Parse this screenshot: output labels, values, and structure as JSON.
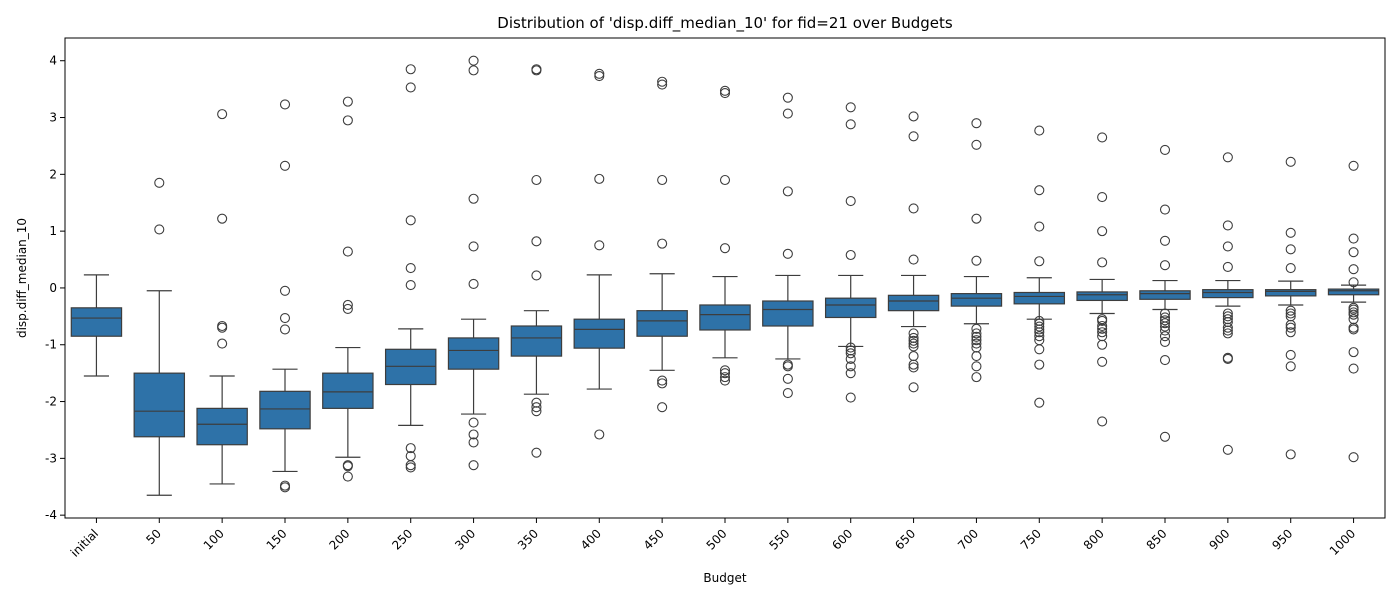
{
  "chart_data": {
    "type": "box",
    "title": "Distribution of 'disp.diff_median_10' for fid=21 over Budgets",
    "xlabel": "Budget",
    "ylabel": "disp.diff_median_10",
    "ylim": [
      -4.05,
      4.4
    ],
    "yticks": [
      -4,
      -3,
      -2,
      -1,
      0,
      1,
      2,
      3,
      4
    ],
    "grid": false,
    "legend": "none",
    "colors": {
      "box": "#2e72a8",
      "line": "#3d3d3d"
    },
    "categories": [
      "initial",
      "50",
      "100",
      "150",
      "200",
      "250",
      "300",
      "350",
      "400",
      "450",
      "500",
      "550",
      "600",
      "650",
      "700",
      "750",
      "800",
      "850",
      "900",
      "950",
      "1000"
    ],
    "boxes": [
      {
        "q1": -0.85,
        "median": -0.53,
        "q3": -0.35,
        "whislo": -1.55,
        "whishi": 0.23,
        "fliers": []
      },
      {
        "q1": -2.62,
        "median": -2.17,
        "q3": -1.5,
        "whislo": -3.65,
        "whishi": -0.05,
        "fliers": [
          1.85,
          1.03
        ]
      },
      {
        "q1": -2.76,
        "median": -2.4,
        "q3": -2.12,
        "whislo": -3.45,
        "whishi": -1.55,
        "fliers": [
          3.06,
          1.22,
          -0.67,
          -0.7,
          -0.98
        ]
      },
      {
        "q1": -2.48,
        "median": -2.13,
        "q3": -1.82,
        "whislo": -3.23,
        "whishi": -1.43,
        "fliers": [
          3.23,
          2.15,
          -0.05,
          -0.53,
          -0.73,
          -3.48,
          -3.51
        ]
      },
      {
        "q1": -2.12,
        "median": -1.83,
        "q3": -1.5,
        "whislo": -2.98,
        "whishi": -1.05,
        "fliers": [
          3.28,
          2.95,
          0.64,
          -0.3,
          -0.37,
          -3.12,
          -3.14,
          -3.32
        ]
      },
      {
        "q1": -1.7,
        "median": -1.38,
        "q3": -1.08,
        "whislo": -2.42,
        "whishi": -0.72,
        "fliers": [
          3.85,
          3.53,
          1.19,
          0.35,
          0.05,
          -2.82,
          -2.96,
          -3.12,
          -3.16
        ]
      },
      {
        "q1": -1.43,
        "median": -1.1,
        "q3": -0.88,
        "whislo": -2.22,
        "whishi": -0.55,
        "fliers": [
          4.0,
          3.83,
          1.57,
          0.73,
          0.07,
          -2.37,
          -2.58,
          -2.72,
          -3.12
        ]
      },
      {
        "q1": -1.2,
        "median": -0.88,
        "q3": -0.67,
        "whislo": -1.87,
        "whishi": -0.4,
        "fliers": [
          3.85,
          3.83,
          1.9,
          0.82,
          0.22,
          -2.02,
          -2.1,
          -2.17,
          -2.9
        ]
      },
      {
        "q1": -1.06,
        "median": -0.73,
        "q3": -0.55,
        "whislo": -1.78,
        "whishi": 0.23,
        "fliers": [
          3.77,
          3.73,
          1.92,
          0.75,
          -2.58
        ]
      },
      {
        "q1": -0.85,
        "median": -0.58,
        "q3": -0.4,
        "whislo": -1.45,
        "whishi": 0.25,
        "fliers": [
          3.63,
          3.58,
          1.9,
          0.78,
          -1.63,
          -1.68,
          -2.1
        ]
      },
      {
        "q1": -0.74,
        "median": -0.47,
        "q3": -0.3,
        "whislo": -1.23,
        "whishi": 0.2,
        "fliers": [
          3.47,
          3.43,
          1.9,
          0.7,
          -1.45,
          -1.5,
          -1.57,
          -1.63
        ]
      },
      {
        "q1": -0.67,
        "median": -0.38,
        "q3": -0.23,
        "whislo": -1.25,
        "whishi": 0.22,
        "fliers": [
          3.35,
          3.07,
          1.7,
          0.6,
          -1.35,
          -1.38,
          -1.6,
          -1.85
        ]
      },
      {
        "q1": -0.52,
        "median": -0.3,
        "q3": -0.18,
        "whislo": -1.03,
        "whishi": 0.22,
        "fliers": [
          3.18,
          2.88,
          1.53,
          0.58,
          -1.05,
          -1.1,
          -1.15,
          -1.25,
          -1.38,
          -1.5,
          -1.93
        ]
      },
      {
        "q1": -0.4,
        "median": -0.23,
        "q3": -0.13,
        "whislo": -0.68,
        "whishi": 0.22,
        "fliers": [
          3.02,
          2.67,
          1.4,
          0.5,
          -0.8,
          -0.88,
          -0.93,
          -0.98,
          -1.03,
          -1.2,
          -1.35,
          -1.4,
          -1.75
        ]
      },
      {
        "q1": -0.32,
        "median": -0.18,
        "q3": -0.1,
        "whislo": -0.63,
        "whishi": 0.2,
        "fliers": [
          2.9,
          2.52,
          1.22,
          0.48,
          -0.72,
          -0.8,
          -0.86,
          -0.92,
          -0.98,
          -1.05,
          -1.2,
          -1.38,
          -1.57
        ]
      },
      {
        "q1": -0.28,
        "median": -0.15,
        "q3": -0.08,
        "whislo": -0.55,
        "whishi": 0.18,
        "fliers": [
          2.77,
          1.72,
          1.08,
          0.47,
          -0.58,
          -0.63,
          -0.68,
          -0.73,
          -0.78,
          -0.85,
          -0.92,
          -1.08,
          -1.35,
          -2.02
        ]
      },
      {
        "q1": -0.22,
        "median": -0.12,
        "q3": -0.07,
        "whislo": -0.45,
        "whishi": 0.15,
        "fliers": [
          2.65,
          1.6,
          1.0,
          0.45,
          -0.55,
          -0.58,
          -0.67,
          -0.72,
          -0.78,
          -0.85,
          -1.0,
          -1.3,
          -2.35
        ]
      },
      {
        "q1": -0.2,
        "median": -0.1,
        "q3": -0.05,
        "whislo": -0.38,
        "whishi": 0.13,
        "fliers": [
          2.43,
          1.38,
          0.83,
          0.4,
          -0.45,
          -0.52,
          -0.57,
          -0.62,
          -0.68,
          -0.75,
          -0.85,
          -0.95,
          -1.27,
          -2.62
        ]
      },
      {
        "q1": -0.17,
        "median": -0.08,
        "q3": -0.03,
        "whislo": -0.32,
        "whishi": 0.13,
        "fliers": [
          2.3,
          1.1,
          0.73,
          0.37,
          -0.45,
          -0.5,
          -0.55,
          -0.6,
          -0.7,
          -0.75,
          -0.8,
          -1.23,
          -1.25,
          -2.85
        ]
      },
      {
        "q1": -0.14,
        "median": -0.06,
        "q3": -0.03,
        "whislo": -0.3,
        "whishi": 0.12,
        "fliers": [
          2.22,
          0.97,
          0.68,
          0.35,
          -0.4,
          -0.45,
          -0.5,
          -0.65,
          -0.7,
          -0.78,
          -1.18,
          -1.38,
          -2.93
        ]
      },
      {
        "q1": -0.12,
        "median": -0.05,
        "q3": -0.02,
        "whislo": -0.25,
        "whishi": 0.05,
        "fliers": [
          2.15,
          0.87,
          0.63,
          0.33,
          0.1,
          -0.35,
          -0.38,
          -0.43,
          -0.47,
          -0.55,
          -0.7,
          -0.73,
          -1.13,
          -1.42,
          -2.98
        ]
      }
    ]
  }
}
